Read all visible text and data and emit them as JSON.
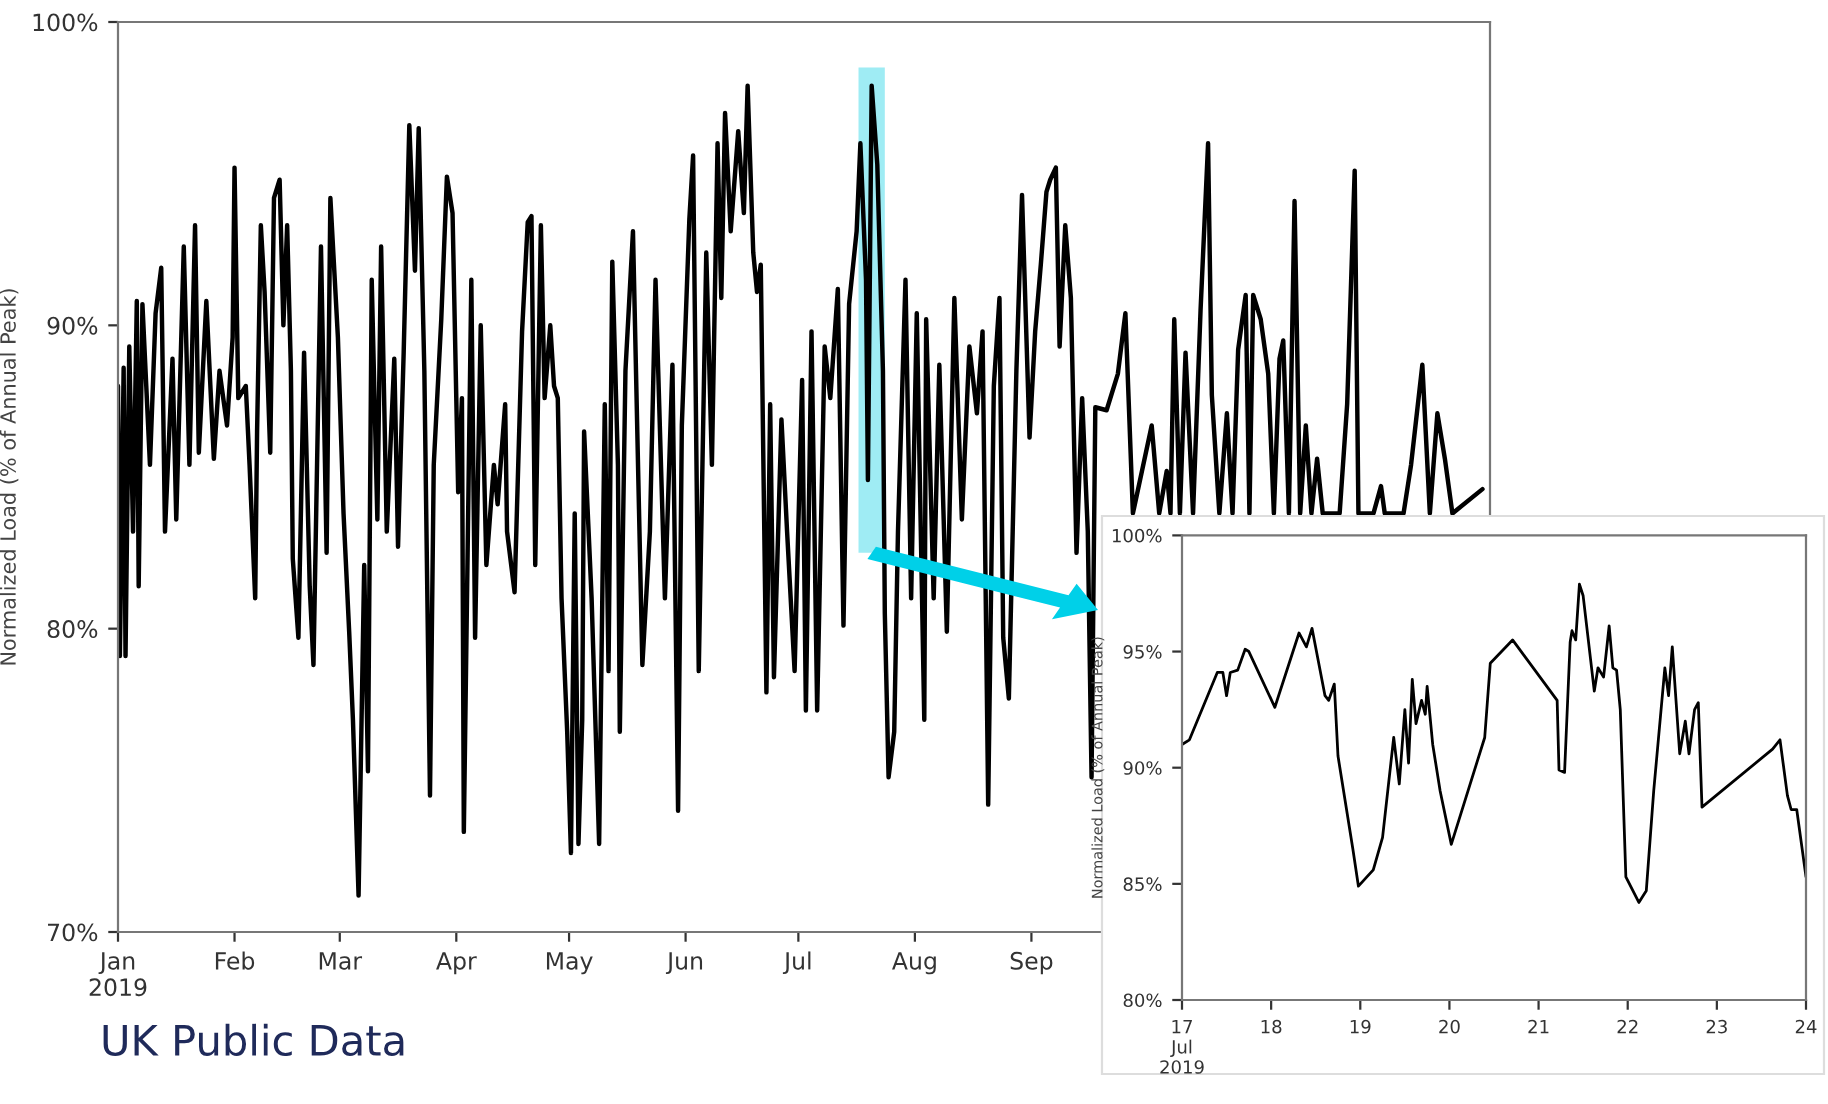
{
  "chart_data": [
    {
      "type": "line",
      "ylabel": "Normalized Load (% of Annual Peak)",
      "annotations": [
        "UK Public Data"
      ],
      "x": [
        "2019-01-01T00:00",
        "2019-01-01T12:00",
        "2019-01-02T12:00",
        "2019-01-03",
        "2019-01-04",
        "2019-01-05",
        "2019-01-06",
        "2019-01-06T12:00",
        "2019-01-07T12:00",
        "2019-01-09T12:00",
        "2019-01-11",
        "2019-01-12T12:00",
        "2019-01-13T12:00",
        "2019-01-15T12:00",
        "2019-01-16T12:00",
        "2019-01-18T12:00",
        "2019-01-20",
        "2019-01-21T12:00",
        "2019-01-22T12:00",
        "2019-01-24T12:00",
        "2019-01-26T12:00",
        "2019-01-28",
        "2019-01-30",
        "2019-01-31T12:00",
        "2019-02-01",
        "2019-02-02",
        "2019-02-04",
        "2019-02-05",
        "2019-02-06T12:00",
        "2019-02-07",
        "2019-02-08",
        "2019-02-09",
        "2019-02-10T12:00",
        "2019-02-11T12:00",
        "2019-02-13",
        "2019-02-14",
        "2019-02-15",
        "2019-02-16",
        "2019-02-16T12:00",
        "2019-02-18",
        "2019-02-19T12:00",
        "2019-02-21",
        "2019-02-22",
        "2019-02-24",
        "2019-02-25T12:00",
        "2019-02-26T12:00",
        "2019-02-28T12:00",
        "2019-03-02",
        "2019-03-03T12:00",
        "2019-03-04T12:00",
        "2019-03-06",
        "2019-03-07T12:00",
        "2019-03-08T12:00",
        "2019-03-09T12:00",
        "2019-03-11",
        "2019-03-12",
        "2019-03-13T12:00",
        "2019-03-15T12:00",
        "2019-03-16T12:00",
        "2019-03-18",
        "2019-03-19T12:00",
        "2019-03-21",
        "2019-03-22",
        "2019-03-23T12:00",
        "2019-03-25",
        "2019-03-26",
        "2019-03-28",
        "2019-03-29T12:00",
        "2019-03-31",
        "2019-04-01T12:00",
        "2019-04-02T12:00",
        "2019-04-03",
        "2019-04-05",
        "2019-04-06",
        "2019-04-07T12:00",
        "2019-04-09",
        "2019-04-11",
        "2019-04-12",
        "2019-04-14",
        "2019-04-14T12:00",
        "2019-04-16T12:00",
        "2019-04-18T12:00",
        "2019-04-20",
        "2019-04-21",
        "2019-04-22",
        "2019-04-23T12:00",
        "2019-04-24T12:00",
        "2019-04-26",
        "2019-04-27",
        "2019-04-28",
        "2019-04-29",
        "2019-04-30T12:00",
        "2019-05-01T12:00",
        "2019-05-02T12:00",
        "2019-05-03T12:00",
        "2019-05-04T12:00",
        "2019-05-05",
        "2019-05-07",
        "2019-05-09",
        "2019-05-10T12:00",
        "2019-05-11T12:00",
        "2019-05-12T12:00",
        "2019-05-14",
        "2019-05-14T12:00",
        "2019-05-16",
        "2019-05-18",
        "2019-05-20T12:00",
        "2019-05-22T12:00",
        "2019-05-24",
        "2019-05-26T12:00",
        "2019-05-28T12:00",
        "2019-05-30",
        "2019-05-31",
        "2019-06-02",
        "2019-06-03",
        "2019-06-04T12:00",
        "2019-06-06T12:00",
        "2019-06-08",
        "2019-06-09T12:00",
        "2019-06-10T12:00",
        "2019-06-11T12:00",
        "2019-06-13",
        "2019-06-15",
        "2019-06-16T12:00",
        "2019-06-17T12:00",
        "2019-06-19",
        "2019-06-20",
        "2019-06-21",
        "2019-06-22T12:00",
        "2019-06-23T12:00",
        "2019-06-24T12:00",
        "2019-06-26T12:00",
        "2019-06-28",
        "2019-06-30",
        "2019-07-02",
        "2019-07-03",
        "2019-07-04T12:00",
        "2019-07-06",
        "2019-07-08",
        "2019-07-09T12:00",
        "2019-07-11T12:00",
        "2019-07-13",
        "2019-07-14T12:00",
        "2019-07-16T12:00",
        "2019-07-17T12:00",
        "2019-07-19",
        "2019-07-19T12:00",
        "2019-07-20T12:00",
        "2019-07-22",
        "2019-07-23T12:00",
        "2019-07-24",
        "2019-07-25",
        "2019-07-26T12:00",
        "2019-07-27T12:00",
        "2019-07-29T12:00",
        "2019-07-31",
        "2019-08-01T12:00",
        "2019-08-03T12:00",
        "2019-08-04",
        "2019-08-06",
        "2019-08-07T12:00",
        "2019-08-09T12:00",
        "2019-08-11T12:00",
        "2019-08-13T12:00",
        "2019-08-15T12:00",
        "2019-08-17T12:00",
        "2019-08-19",
        "2019-08-20T12:00",
        "2019-08-22",
        "2019-08-23T12:00",
        "2019-08-24T12:00",
        "2019-08-26",
        "2019-08-28",
        "2019-08-29T12:00",
        "2019-08-31T12:00",
        "2019-09-02",
        "2019-09-03T12:00",
        "2019-09-05",
        "2019-09-06",
        "2019-09-07T12:00",
        "2019-09-08T12:00",
        "2019-09-10",
        "2019-09-11T12:00",
        "2019-09-13",
        "2019-09-14T12:00",
        "2019-09-16",
        "2019-09-17",
        "2019-09-18",
        "2019-09-21",
        "2019-09-24",
        "2019-09-26",
        "2019-09-28",
        "2019-10-03",
        "2019-10-05",
        "2019-10-07",
        "2019-10-08",
        "2019-10-09",
        "2019-10-10T12:00",
        "2019-10-12",
        "2019-10-14",
        "2019-10-16",
        "2019-10-18",
        "2019-10-19",
        "2019-10-21",
        "2019-10-23",
        "2019-10-24T12:00",
        "2019-10-26",
        "2019-10-28",
        "2019-10-29",
        "2019-10-30",
        "2019-11-01",
        "2019-11-03",
        "2019-11-04T12:00",
        "2019-11-06",
        "2019-11-07",
        "2019-11-08T12:00",
        "2019-11-10",
        "2019-11-11T12:00",
        "2019-11-13",
        "2019-11-14T12:00",
        "2019-11-16",
        "2019-11-17T12:00",
        "2019-11-22",
        "2019-11-24",
        "2019-11-26",
        "2019-11-27",
        "2019-12-01",
        "2019-12-03",
        "2019-12-04",
        "2019-12-09",
        "2019-12-11",
        "2019-12-14",
        "2019-12-16",
        "2019-12-18",
        "2019-12-20",
        "2019-12-22",
        "2019-12-30"
      ],
      "series": [
        {
          "color": "#000000",
          "values": [
            88.0,
            79.1,
            88.6,
            79.1,
            89.3,
            83.2,
            90.8,
            81.4,
            90.7,
            85.4,
            90.4,
            91.9,
            83.2,
            88.9,
            83.6,
            92.6,
            85.4,
            93.3,
            85.8,
            90.8,
            85.6,
            88.5,
            86.7,
            89.6,
            95.2,
            87.6,
            88.0,
            85.4,
            81.0,
            86.5,
            93.3,
            91.1,
            85.8,
            94.2,
            94.8,
            90.0,
            93.3,
            88.5,
            82.3,
            79.7,
            89.1,
            81.4,
            78.8,
            92.6,
            82.5,
            94.2,
            89.6,
            83.8,
            79.9,
            77.0,
            71.2,
            82.1,
            75.3,
            91.5,
            83.6,
            92.6,
            83.2,
            88.9,
            82.7,
            89.1,
            96.6,
            91.8,
            96.5,
            88.5,
            74.5,
            85.4,
            90.2,
            94.9,
            93.7,
            84.5,
            87.6,
            73.3,
            91.5,
            79.7,
            90.0,
            82.1,
            85.4,
            84.1,
            87.4,
            83.2,
            81.2,
            89.8,
            93.4,
            93.6,
            82.1,
            93.3,
            87.6,
            90.0,
            88.0,
            87.6,
            81.0,
            76.6,
            72.6,
            83.8,
            72.9,
            77.0,
            86.5,
            81.0,
            72.9,
            87.4,
            78.6,
            92.1,
            85.4,
            76.6,
            88.5,
            93.1,
            78.8,
            83.2,
            91.5,
            81.0,
            88.7,
            74.0,
            86.7,
            93.5,
            95.6,
            78.6,
            92.4,
            85.4,
            96.0,
            90.9,
            97.0,
            93.1,
            96.4,
            93.7,
            97.9,
            92.4,
            91.1,
            92.0,
            77.9,
            87.4,
            78.4,
            86.9,
            83.2,
            78.6,
            88.2,
            77.3,
            89.8,
            77.3,
            89.3,
            87.6,
            91.2,
            80.1,
            90.7,
            93.1,
            96.0,
            91.5,
            84.9,
            97.9,
            95.3,
            88.5,
            80.5,
            75.1,
            76.6,
            83.2,
            91.5,
            81.0,
            90.4,
            77.0,
            90.2,
            81.0,
            88.7,
            79.9,
            90.9,
            83.6,
            89.3,
            87.1,
            89.8,
            74.2,
            88.0,
            90.9,
            79.7,
            77.7,
            88.5,
            94.3,
            86.3,
            89.8,
            92.0,
            94.4,
            94.8,
            95.2,
            89.3,
            93.3,
            90.9,
            82.5,
            87.6,
            83.2,
            75.1,
            87.3,
            87.2,
            88.4,
            90.4,
            83.8,
            86.7,
            83.8,
            85.2,
            83.8,
            90.2,
            83.8,
            89.1,
            83.8,
            90.5,
            96.0,
            87.7,
            83.8,
            87.1,
            83.8,
            89.2,
            91.0,
            83.8,
            91.0,
            90.2,
            88.4,
            83.8,
            88.9,
            89.5,
            83.8,
            94.1,
            83.8,
            86.7,
            83.8,
            85.6,
            83.8,
            83.8,
            87.4,
            95.1,
            83.8,
            83.8,
            84.7,
            83.8,
            83.8,
            85.4,
            88.7,
            83.8,
            87.1,
            85.6,
            83.8,
            84.6
          ]
        }
      ],
      "xlim": [
        "2019-01-01",
        "2020-01-01"
      ],
      "xticks": [
        {
          "value": "2019-01-01",
          "label": "Jan\n2019"
        },
        {
          "value": "2019-02-01",
          "label": "Feb"
        },
        {
          "value": "2019-03-01",
          "label": "Mar"
        },
        {
          "value": "2019-04-01",
          "label": "Apr"
        },
        {
          "value": "2019-05-01",
          "label": "May"
        },
        {
          "value": "2019-06-01",
          "label": "Jun"
        },
        {
          "value": "2019-07-01",
          "label": "Jul"
        },
        {
          "value": "2019-08-01",
          "label": "Aug"
        },
        {
          "value": "2019-09-01",
          "label": "Sep"
        }
      ],
      "ylim": [
        70,
        100
      ],
      "yticks": [
        {
          "value": 70,
          "label": "70%"
        },
        {
          "value": 80,
          "label": "80%"
        },
        {
          "value": 90,
          "label": "90%"
        },
        {
          "value": 100,
          "label": "100%"
        }
      ],
      "bands": [
        {
          "axis": "x",
          "from": "2019-07-17",
          "to": "2019-07-24",
          "color": "#7fe6f0"
        }
      ],
      "grid": false
    },
    {
      "type": "line",
      "ylabel": "Normalized Load (% of Annual Peak)",
      "x": [
        "2019-07-17T00:00",
        "2019-07-17T02:00",
        "2019-07-17T09:30",
        "2019-07-17T11:00",
        "2019-07-17T12:00",
        "2019-07-17T13:00",
        "2019-07-17T15:00",
        "2019-07-17T17:00",
        "2019-07-17T18:00",
        "2019-07-18T01:00",
        "2019-07-18T07:30",
        "2019-07-18T09:30",
        "2019-07-18T11:00",
        "2019-07-18T14:30",
        "2019-07-18T15:30",
        "2019-07-18T17:00",
        "2019-07-18T18:00",
        "2019-07-18T22:00",
        "2019-07-18T23:30",
        "2019-07-19T03:30",
        "2019-07-19T06:00",
        "2019-07-19T09:00",
        "2019-07-19T10:30",
        "2019-07-19T12:00",
        "2019-07-19T13:00",
        "2019-07-19T14:00",
        "2019-07-19T15:00",
        "2019-07-19T16:30",
        "2019-07-19T17:30",
        "2019-07-19T18:00",
        "2019-07-19T19:30",
        "2019-07-19T21:30",
        "2019-07-20T00:30",
        "2019-07-20T09:30",
        "2019-07-20T11:00",
        "2019-07-20T17:00",
        "2019-07-21T05:00",
        "2019-07-21T05:30",
        "2019-07-21T07:00",
        "2019-07-21T08:30",
        "2019-07-21T09:00",
        "2019-07-21T10:00",
        "2019-07-21T11:00",
        "2019-07-21T12:00",
        "2019-07-21T15:00",
        "2019-07-21T16:00",
        "2019-07-21T17:30",
        "2019-07-21T19:00",
        "2019-07-21T20:00",
        "2019-07-21T21:00",
        "2019-07-21T22:00",
        "2019-07-21T23:30",
        "2019-07-22T03:00",
        "2019-07-22T05:00",
        "2019-07-22T07:00",
        "2019-07-22T10:00",
        "2019-07-22T11:00",
        "2019-07-22T12:00",
        "2019-07-22T14:00",
        "2019-07-22T15:30",
        "2019-07-22T16:30",
        "2019-07-22T18:00",
        "2019-07-22T19:00",
        "2019-07-22T20:00",
        "2019-07-23T15:00",
        "2019-07-23T17:00",
        "2019-07-23T19:00",
        "2019-07-23T20:00",
        "2019-07-23T21:30",
        "2019-07-24T00:00"
      ],
      "series": [
        {
          "color": "#000000",
          "values": [
            91.0,
            91.2,
            94.1,
            94.1,
            93.1,
            94.1,
            94.2,
            95.1,
            95.0,
            92.6,
            95.8,
            95.2,
            96.0,
            93.1,
            92.9,
            93.6,
            90.5,
            86.5,
            84.9,
            85.6,
            87.0,
            91.3,
            89.3,
            92.5,
            90.2,
            93.8,
            91.9,
            92.9,
            92.3,
            93.5,
            91.0,
            89.0,
            86.7,
            91.3,
            94.5,
            95.5,
            92.9,
            89.9,
            89.8,
            95.4,
            95.9,
            95.5,
            97.9,
            97.4,
            93.3,
            94.3,
            93.9,
            96.1,
            94.3,
            94.2,
            92.5,
            85.3,
            84.2,
            84.7,
            89.0,
            94.3,
            93.1,
            95.2,
            90.6,
            92.0,
            90.6,
            92.5,
            92.8,
            88.3,
            90.8,
            91.2,
            88.8,
            88.2,
            88.2,
            85.3
          ]
        }
      ],
      "xlim": [
        "2019-07-17",
        "2019-07-24"
      ],
      "xticks": [
        {
          "value": "2019-07-17",
          "label": "17\nJul\n2019"
        },
        {
          "value": "2019-07-18",
          "label": "18"
        },
        {
          "value": "2019-07-19",
          "label": "19"
        },
        {
          "value": "2019-07-20",
          "label": "20"
        },
        {
          "value": "2019-07-21",
          "label": "21"
        },
        {
          "value": "2019-07-22",
          "label": "22"
        },
        {
          "value": "2019-07-23",
          "label": "23"
        },
        {
          "value": "2019-07-24",
          "label": "24"
        }
      ],
      "ylim": [
        80,
        100
      ],
      "yticks": [
        {
          "value": 80,
          "label": "80%"
        },
        {
          "value": 85,
          "label": "85%"
        },
        {
          "value": 90,
          "label": "90%"
        },
        {
          "value": 95,
          "label": "95%"
        },
        {
          "value": 100,
          "label": "100%"
        }
      ],
      "grid": false
    }
  ]
}
